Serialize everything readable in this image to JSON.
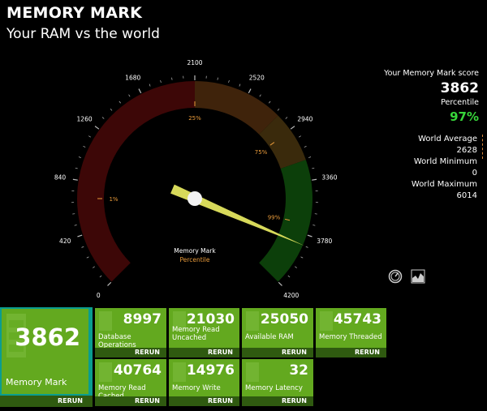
{
  "header": {
    "title": "MEMORY MARK",
    "subtitle": "Your RAM vs the world"
  },
  "gauge": {
    "min": 0,
    "max": 4200,
    "ticks": [
      "0",
      "420",
      "840",
      "1260",
      "1680",
      "2100",
      "2520",
      "2940",
      "3360",
      "3780",
      "4200"
    ],
    "percentile_marks": [
      "1%",
      "25%",
      "75%",
      "99%"
    ],
    "center_label": "Memory Mark",
    "center_sublabel": "Percentile",
    "needle_value": 3862,
    "zones": [
      {
        "from": 0,
        "to": 2100,
        "color": "#3d0707"
      },
      {
        "from": 2100,
        "to": 2800,
        "color": "#3f230b"
      },
      {
        "from": 2800,
        "to": 3200,
        "color": "#3a2a0c"
      },
      {
        "from": 3200,
        "to": 4200,
        "color": "#0c3f0a"
      }
    ]
  },
  "score": {
    "label": "Your Memory Mark score",
    "value": "3862",
    "percentile_label": "Percentile",
    "percentile_value": "97%"
  },
  "world": {
    "avg_label": "World Average",
    "avg_value": "2628",
    "min_label": "World Minimum",
    "min_value": "0",
    "max_label": "World Maximum",
    "max_value": "6014"
  },
  "icons": {
    "gauge_icon": "speedometer-icon",
    "chart_icon": "area-chart-icon"
  },
  "main_tile": {
    "value": "3862",
    "label": "Memory Mark",
    "rerun": "RERUN"
  },
  "tiles": [
    {
      "value": "8997",
      "label": "Database Operations",
      "rerun": "RERUN"
    },
    {
      "value": "21030",
      "label": "Memory Read Uncached",
      "rerun": "RERUN"
    },
    {
      "value": "25050",
      "label": "Available RAM",
      "rerun": "RERUN"
    },
    {
      "value": "45743",
      "label": "Memory Threaded",
      "rerun": "RERUN"
    },
    {
      "value": "40764",
      "label": "Memory Read Cached",
      "rerun": "RERUN"
    },
    {
      "value": "14976",
      "label": "Memory Write",
      "rerun": "RERUN"
    },
    {
      "value": "32",
      "label": "Memory Latency",
      "rerun": "RERUN"
    }
  ]
}
